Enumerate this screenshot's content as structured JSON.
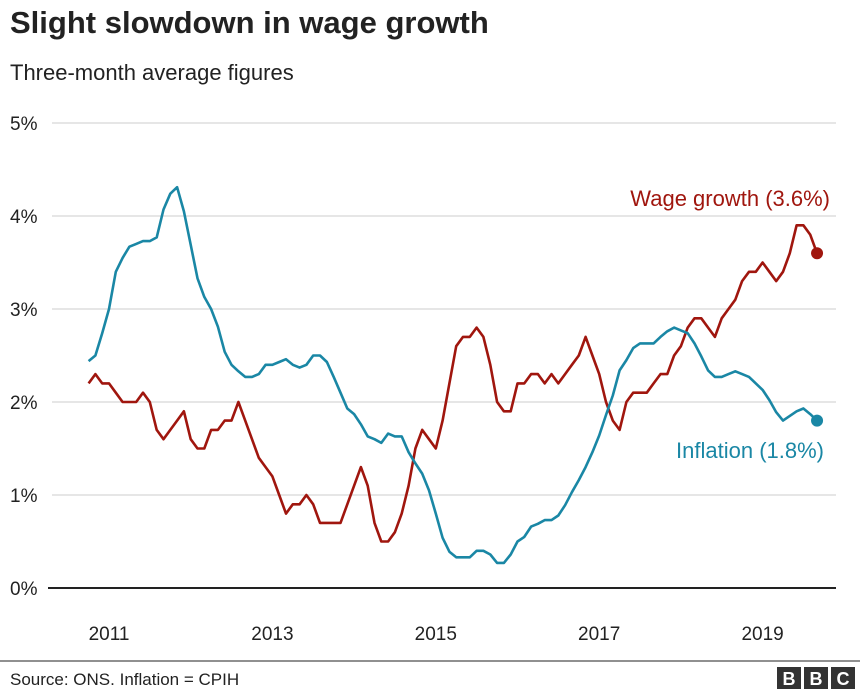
{
  "chart_data": {
    "type": "line",
    "title": "Slight slowdown in wage growth",
    "subtitle": "Three-month average figures",
    "xlabel": "",
    "ylabel": "",
    "ylim": [
      0,
      5
    ],
    "xlim": [
      2010.5,
      2019.9
    ],
    "grid": true,
    "y_ticks": [
      {
        "value": 0,
        "label": "0%"
      },
      {
        "value": 1,
        "label": "1%"
      },
      {
        "value": 2,
        "label": "2%"
      },
      {
        "value": 3,
        "label": "3%"
      },
      {
        "value": 4,
        "label": "4%"
      },
      {
        "value": 5,
        "label": "5%"
      }
    ],
    "x_ticks": [
      {
        "value": 2011,
        "label": "2011"
      },
      {
        "value": 2013,
        "label": "2013"
      },
      {
        "value": 2015,
        "label": "2015"
      },
      {
        "value": 2017,
        "label": "2017"
      },
      {
        "value": 2019,
        "label": "2019"
      }
    ],
    "x_start": 2010.75,
    "x_step": 0.08333,
    "series": [
      {
        "name": "Wage growth",
        "label": "Wage growth (3.6%)",
        "color": "#a0160e",
        "values": [
          2.2,
          2.3,
          2.2,
          2.2,
          2.1,
          2.0,
          2.0,
          2.0,
          2.1,
          2.0,
          1.7,
          1.6,
          1.7,
          1.8,
          1.9,
          1.6,
          1.5,
          1.5,
          1.7,
          1.7,
          1.8,
          1.8,
          2.0,
          1.8,
          1.6,
          1.4,
          1.3,
          1.2,
          1.0,
          0.8,
          0.9,
          0.9,
          1.0,
          0.9,
          0.7,
          0.7,
          0.7,
          0.7,
          0.9,
          1.1,
          1.3,
          1.1,
          0.7,
          0.5,
          0.5,
          0.6,
          0.8,
          1.1,
          1.5,
          1.7,
          1.6,
          1.5,
          1.8,
          2.2,
          2.6,
          2.7,
          2.7,
          2.8,
          2.7,
          2.4,
          2.0,
          1.9,
          1.9,
          2.2,
          2.2,
          2.3,
          2.3,
          2.2,
          2.3,
          2.2,
          2.3,
          2.4,
          2.5,
          2.7,
          2.5,
          2.3,
          2.0,
          1.8,
          1.7,
          2.0,
          2.1,
          2.1,
          2.1,
          2.2,
          2.3,
          2.3,
          2.5,
          2.6,
          2.8,
          2.9,
          2.9,
          2.8,
          2.7,
          2.9,
          3.0,
          3.1,
          3.3,
          3.4,
          3.4,
          3.5,
          3.4,
          3.3,
          3.4,
          3.6,
          3.9,
          3.9,
          3.8,
          3.6
        ]
      },
      {
        "name": "Inflation",
        "label": "Inflation (1.8%)",
        "color": "#1a87a5",
        "values": [
          2.44,
          2.5,
          2.74,
          3.0,
          3.4,
          3.55,
          3.67,
          3.7,
          3.73,
          3.73,
          3.77,
          4.07,
          4.24,
          4.31,
          4.05,
          3.69,
          3.33,
          3.13,
          3.0,
          2.81,
          2.54,
          2.4,
          2.33,
          2.27,
          2.27,
          2.3,
          2.4,
          2.4,
          2.43,
          2.46,
          2.4,
          2.37,
          2.4,
          2.5,
          2.5,
          2.43,
          2.27,
          2.1,
          1.93,
          1.87,
          1.76,
          1.63,
          1.6,
          1.56,
          1.66,
          1.63,
          1.63,
          1.46,
          1.34,
          1.23,
          1.05,
          0.8,
          0.54,
          0.39,
          0.33,
          0.33,
          0.33,
          0.4,
          0.4,
          0.36,
          0.27,
          0.27,
          0.36,
          0.5,
          0.55,
          0.66,
          0.69,
          0.73,
          0.73,
          0.78,
          0.89,
          1.03,
          1.16,
          1.3,
          1.46,
          1.64,
          1.86,
          2.07,
          2.34,
          2.45,
          2.58,
          2.63,
          2.63,
          2.63,
          2.7,
          2.76,
          2.8,
          2.77,
          2.74,
          2.63,
          2.49,
          2.34,
          2.27,
          2.27,
          2.3,
          2.33,
          2.3,
          2.27,
          2.2,
          2.13,
          2.02,
          1.89,
          1.8,
          1.85,
          1.9,
          1.93,
          1.87,
          1.8
        ]
      }
    ]
  },
  "footer": {
    "source": "Source: ONS. Inflation = CPIH",
    "logo": "BBC"
  }
}
